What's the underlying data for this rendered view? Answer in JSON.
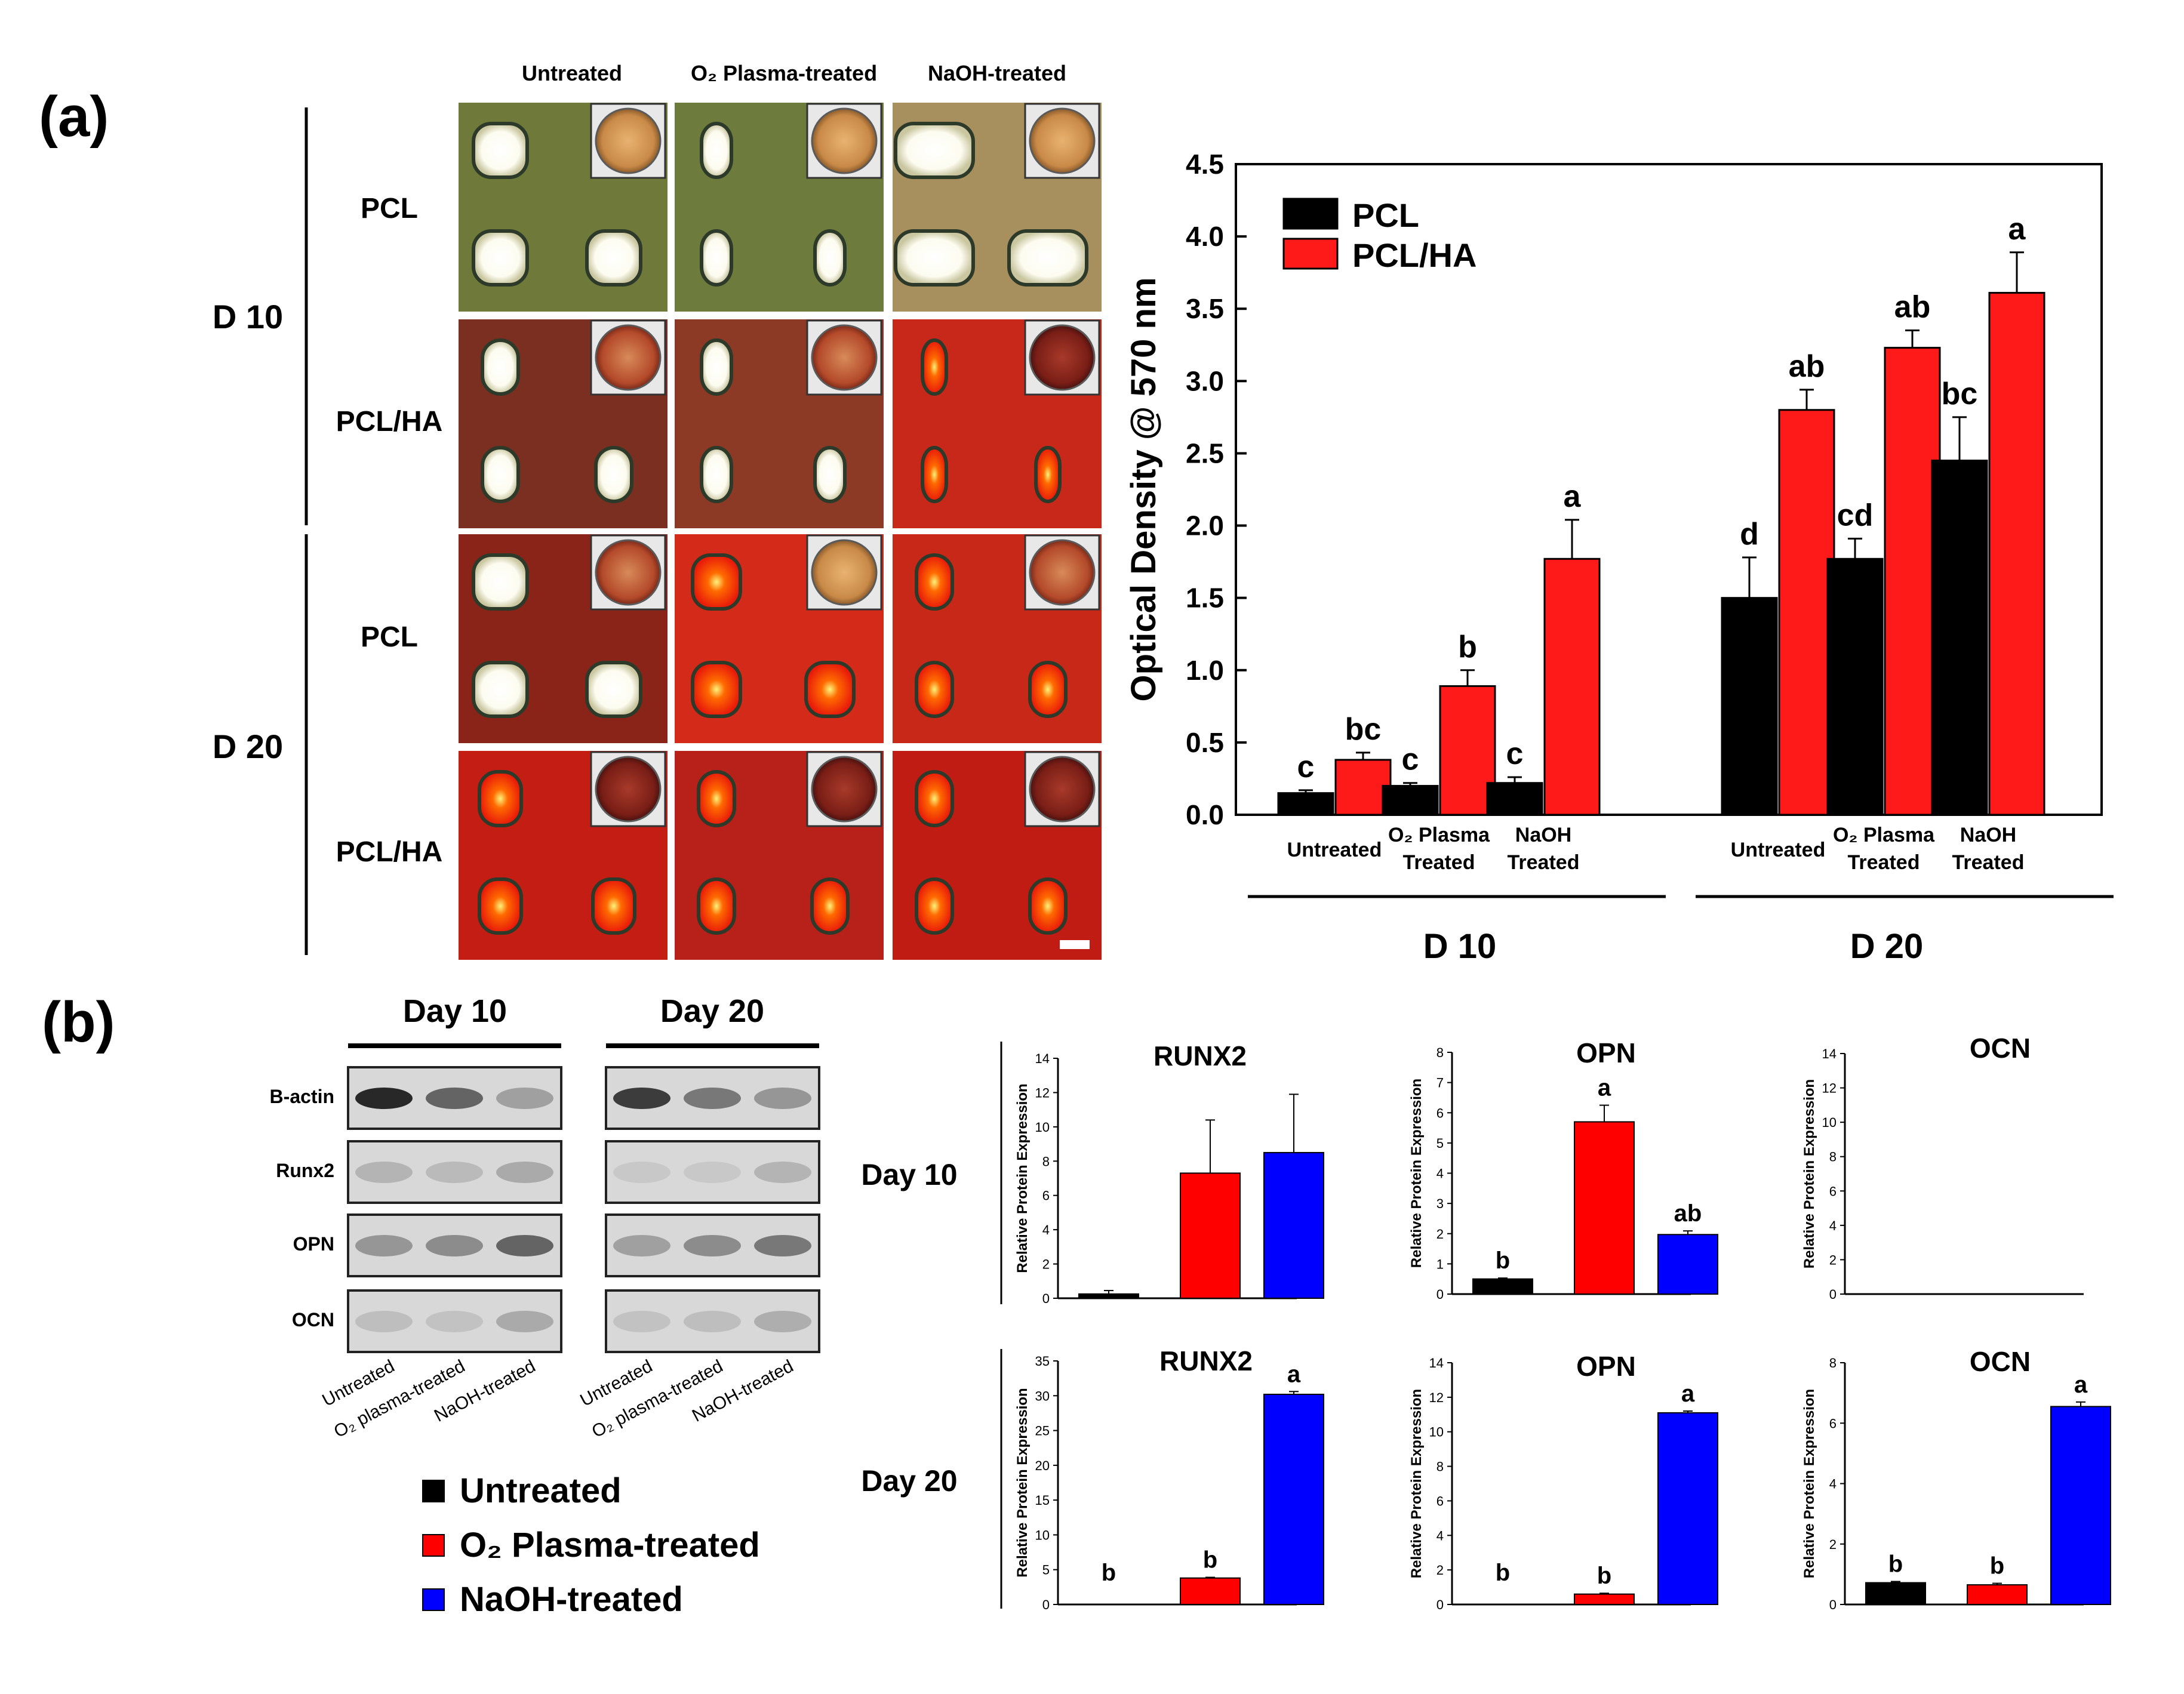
{
  "panel_labels": {
    "a": "(a)",
    "b": "(b)"
  },
  "micrograph": {
    "column_headers": [
      "Untreated",
      "O₂ Plasma-treated",
      "NaOH-treated"
    ],
    "day_labels": [
      "D 10",
      "D 20"
    ],
    "row_labels": [
      "PCL",
      "PCL/HA",
      "PCL",
      "PCL/HA"
    ]
  },
  "colors": {
    "untreated": "#000000",
    "o2_plasma": "#ff0000",
    "naoh": "#0000ff",
    "pcl": "#000000",
    "pcl_ha": "#ff1a1a"
  },
  "chart_data": [
    {
      "type": "bar",
      "ylabel": "Optical Density @ 570 nm",
      "ylim": [
        0,
        4.5
      ],
      "yticks": [
        "0.0",
        "0.5",
        "1.0",
        "1.5",
        "2.0",
        "2.5",
        "3.0",
        "3.5",
        "4.0",
        "4.5"
      ],
      "groups": [
        "D 10",
        "D 20"
      ],
      "categories": [
        "Untreated",
        "O₂ Plasma Treated",
        "NaOH Treated",
        "Untreated",
        "O₂ Plasma Treated",
        "NaOH Treated"
      ],
      "legend": {
        "position": "top-left"
      },
      "series": [
        {
          "name": "PCL",
          "values": [
            0.15,
            0.2,
            0.22,
            1.5,
            1.77,
            2.45
          ],
          "errors": [
            0.02,
            0.02,
            0.04,
            0.28,
            0.14,
            0.3
          ],
          "labels": [
            "c",
            "c",
            "c",
            "d",
            "cd",
            "bc"
          ]
        },
        {
          "name": "PCL/HA",
          "values": [
            0.38,
            0.89,
            1.77,
            2.8,
            3.23,
            3.61
          ],
          "errors": [
            0.05,
            0.11,
            0.27,
            0.14,
            0.12,
            0.28
          ],
          "labels": [
            "bc",
            "b",
            "a",
            "ab",
            "ab",
            "a"
          ]
        }
      ]
    },
    {
      "type": "bar",
      "title": "RUNX2",
      "row": "Day 10",
      "ylabel": "Relative Protein Expression",
      "ylim": [
        0,
        14
      ],
      "yticks": [
        "0",
        "2",
        "4",
        "6",
        "8",
        "10",
        "12",
        "14"
      ],
      "categories": [
        "Untreated",
        "O₂ Plasma-treated",
        "NaOH-treated"
      ],
      "values": [
        0.25,
        7.3,
        8.5
      ],
      "errors": [
        0.2,
        3.1,
        3.4
      ],
      "labels": [
        "",
        "",
        ""
      ]
    },
    {
      "type": "bar",
      "title": "OPN",
      "row": "Day 10",
      "ylabel": "Relative Protein Expression",
      "ylim": [
        0,
        8
      ],
      "yticks": [
        "0",
        "1",
        "2",
        "3",
        "4",
        "5",
        "6",
        "7",
        "8"
      ],
      "categories": [
        "Untreated",
        "O₂ Plasma-treated",
        "NaOH-treated"
      ],
      "values": [
        0.5,
        5.7,
        1.97
      ],
      "errors": [
        0.03,
        0.55,
        0.12
      ],
      "labels": [
        "b",
        "a",
        "ab"
      ]
    },
    {
      "type": "bar",
      "title": "OCN",
      "row": "Day 10",
      "ylabel": "Relative Protein Expression",
      "ylim": [
        0,
        14
      ],
      "yticks": [
        "0",
        "2",
        "4",
        "6",
        "8",
        "10",
        "12",
        "14"
      ],
      "categories": [
        "Untreated",
        "O₂ Plasma-treated",
        "NaOH-treated"
      ],
      "values": [
        0,
        0,
        0
      ],
      "errors": [
        0,
        0,
        0
      ],
      "labels": [
        "",
        "",
        ""
      ]
    },
    {
      "type": "bar",
      "title": "RUNX2",
      "row": "Day 20",
      "ylabel": "Relative Protein Expression",
      "ylim": [
        0,
        35
      ],
      "yticks": [
        "0",
        "5",
        "10",
        "15",
        "20",
        "25",
        "30",
        "35"
      ],
      "categories": [
        "Untreated",
        "O₂ Plasma-treated",
        "NaOH-treated"
      ],
      "values": [
        0,
        3.8,
        30.2
      ],
      "errors": [
        0,
        0.1,
        0.4
      ],
      "labels": [
        "b",
        "b",
        "a"
      ]
    },
    {
      "type": "bar",
      "title": "OPN",
      "row": "Day 20",
      "ylabel": "Relative Protein Expression",
      "ylim": [
        0,
        14
      ],
      "yticks": [
        "0",
        "2",
        "4",
        "6",
        "8",
        "10",
        "12",
        "14"
      ],
      "categories": [
        "Untreated",
        "O₂ Plasma-treated",
        "NaOH-treated"
      ],
      "values": [
        0,
        0.6,
        11.1
      ],
      "errors": [
        0,
        0.05,
        0.1
      ],
      "labels": [
        "b",
        "b",
        "a"
      ]
    },
    {
      "type": "bar",
      "title": "OCN",
      "row": "Day 20",
      "ylabel": "Relative Protein Expression",
      "ylim": [
        0,
        8
      ],
      "yticks": [
        "0",
        "2",
        "4",
        "6",
        "8"
      ],
      "categories": [
        "Untreated",
        "O₂ Plasma-treated",
        "NaOH-treated"
      ],
      "values": [
        0.72,
        0.65,
        6.55
      ],
      "errors": [
        0.04,
        0.05,
        0.15
      ],
      "labels": [
        "b",
        "b",
        "a"
      ]
    }
  ],
  "western_blot": {
    "day_headers": [
      "Day 10",
      "Day 20"
    ],
    "proteins": [
      "B-actin",
      "Runx2",
      "OPN",
      "OCN"
    ],
    "lane_labels": [
      "Untreated",
      "O₂ plasma-treated",
      "NaOH-treated"
    ]
  },
  "row_labels_b": [
    "Day 10",
    "Day 20"
  ],
  "legend_b": [
    "Untreated",
    "O₂ Plasma-treated",
    "NaOH-treated"
  ]
}
